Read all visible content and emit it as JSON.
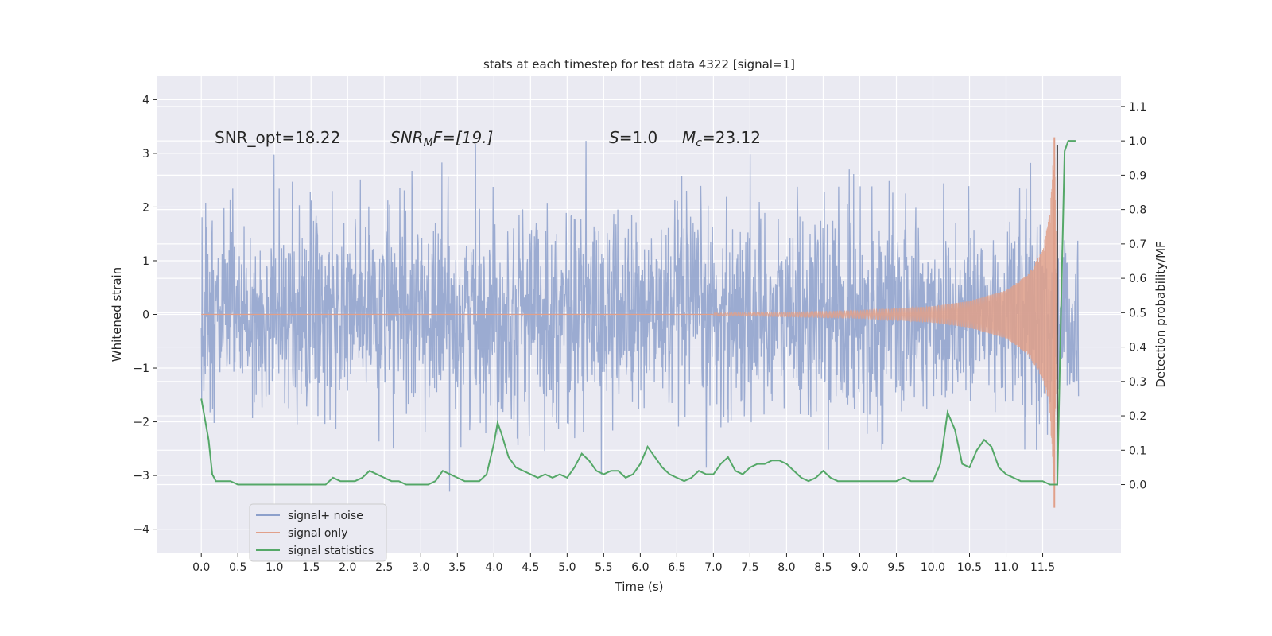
{
  "chart_data": {
    "type": "line",
    "title": "stats at each timestep for test data 4322 [signal=1]",
    "xlabel": "Time (s)",
    "ylabel_left": "Whitened strain",
    "ylabel_right": "Detection probability/MF",
    "xlim": [
      -0.6,
      12.57
    ],
    "ylim_left": [
      -4.45,
      4.45
    ],
    "ylim_right": [
      -0.2,
      1.19
    ],
    "x_ticks": [
      "0.0",
      "0.5",
      "1.0",
      "1.5",
      "2.0",
      "2.5",
      "3.0",
      "3.5",
      "4.0",
      "4.5",
      "5.0",
      "5.5",
      "6.0",
      "6.5",
      "7.0",
      "7.5",
      "8.0",
      "8.5",
      "9.0",
      "9.5",
      "10.0",
      "10.5",
      "11.0",
      "11.5"
    ],
    "y_left_ticks": [
      "4",
      "3",
      "2",
      "1",
      "0",
      "−1",
      "−2",
      "−3",
      "−4"
    ],
    "y_right_ticks": [
      "1.1",
      "1.0",
      "0.9",
      "0.8",
      "0.7",
      "0.6",
      "0.5",
      "0.4",
      "0.3",
      "0.2",
      "0.1",
      "0.0"
    ],
    "grid": true,
    "legend_position": "lower-left",
    "annotations": {
      "snr_opt": "SNR_opt=18.22",
      "snr_mf_base": "SNR",
      "snr_mf_sub": "M",
      "snr_mf_rest": "F=[19.]",
      "s_symbol": "S",
      "s_value": "=1.0",
      "mc_symbol": "M",
      "mc_sub": "c",
      "mc_value": "=23.12"
    },
    "series": [
      {
        "name": "signal+ noise",
        "color": "#8da0cb",
        "axis": "left",
        "x_range": [
          0.0,
          11.99
        ],
        "y_range": [
          -4.1,
          4.05
        ],
        "typical_envelope": [
          -1.9,
          1.9
        ]
      },
      {
        "name": "signal only",
        "color": "#e1a08a",
        "axis": "left",
        "description_points": [
          [
            0.0,
            0.0
          ],
          [
            7.5,
            0.03
          ],
          [
            9.0,
            0.07
          ],
          [
            10.0,
            0.15
          ],
          [
            10.5,
            0.25
          ],
          [
            11.0,
            0.45
          ],
          [
            11.3,
            0.75
          ],
          [
            11.5,
            1.2
          ],
          [
            11.6,
            1.9
          ],
          [
            11.66,
            3.3
          ],
          [
            11.7,
            0.0
          ]
        ]
      },
      {
        "name": "signal statistics",
        "color": "#55a868",
        "axis": "right",
        "x": [
          0.0,
          0.1,
          0.15,
          0.2,
          0.3,
          0.4,
          0.5,
          0.6,
          0.7,
          0.8,
          0.9,
          1.0,
          1.1,
          1.2,
          1.3,
          1.4,
          1.5,
          1.6,
          1.7,
          1.8,
          1.9,
          2.0,
          2.1,
          2.2,
          2.3,
          2.4,
          2.5,
          2.6,
          2.7,
          2.8,
          2.9,
          3.0,
          3.1,
          3.2,
          3.3,
          3.4,
          3.5,
          3.6,
          3.7,
          3.8,
          3.9,
          4.0,
          4.05,
          4.1,
          4.2,
          4.3,
          4.4,
          4.5,
          4.6,
          4.7,
          4.8,
          4.9,
          5.0,
          5.1,
          5.2,
          5.3,
          5.4,
          5.5,
          5.6,
          5.7,
          5.8,
          5.9,
          6.0,
          6.1,
          6.2,
          6.3,
          6.4,
          6.5,
          6.6,
          6.7,
          6.8,
          6.9,
          7.0,
          7.1,
          7.2,
          7.3,
          7.4,
          7.5,
          7.6,
          7.7,
          7.8,
          7.9,
          8.0,
          8.1,
          8.2,
          8.3,
          8.4,
          8.5,
          8.6,
          8.7,
          8.8,
          8.9,
          9.0,
          9.1,
          9.2,
          9.3,
          9.4,
          9.5,
          9.6,
          9.7,
          9.8,
          9.9,
          10.0,
          10.1,
          10.2,
          10.3,
          10.4,
          10.5,
          10.6,
          10.7,
          10.8,
          10.9,
          11.0,
          11.1,
          11.2,
          11.3,
          11.4,
          11.5,
          11.6,
          11.7,
          11.75,
          11.8,
          11.85,
          11.9,
          11.95
        ],
        "y": [
          0.25,
          0.13,
          0.03,
          0.01,
          0.01,
          0.01,
          0.0,
          0.0,
          0.0,
          0.0,
          0.0,
          0.0,
          0.0,
          0.0,
          0.0,
          0.0,
          0.0,
          0.0,
          0.0,
          0.02,
          0.01,
          0.01,
          0.01,
          0.02,
          0.04,
          0.03,
          0.02,
          0.01,
          0.01,
          0.0,
          0.0,
          0.0,
          0.0,
          0.01,
          0.04,
          0.03,
          0.02,
          0.01,
          0.01,
          0.01,
          0.03,
          0.12,
          0.18,
          0.15,
          0.08,
          0.05,
          0.04,
          0.03,
          0.02,
          0.03,
          0.02,
          0.03,
          0.02,
          0.05,
          0.09,
          0.07,
          0.04,
          0.03,
          0.04,
          0.04,
          0.02,
          0.03,
          0.06,
          0.11,
          0.08,
          0.05,
          0.03,
          0.02,
          0.01,
          0.02,
          0.04,
          0.03,
          0.03,
          0.06,
          0.08,
          0.04,
          0.03,
          0.05,
          0.06,
          0.06,
          0.07,
          0.07,
          0.06,
          0.04,
          0.02,
          0.01,
          0.02,
          0.04,
          0.02,
          0.01,
          0.01,
          0.01,
          0.01,
          0.01,
          0.01,
          0.01,
          0.01,
          0.01,
          0.02,
          0.01,
          0.01,
          0.01,
          0.01,
          0.06,
          0.21,
          0.16,
          0.06,
          0.05,
          0.1,
          0.13,
          0.11,
          0.05,
          0.03,
          0.02,
          0.01,
          0.01,
          0.01,
          0.01,
          0.0,
          0.0,
          0.5,
          0.97,
          1.0,
          1.0,
          1.0
        ]
      }
    ],
    "marker_line_x": 11.7
  },
  "legend": {
    "items": [
      {
        "label": "signal+ noise",
        "color": "#8da0cb"
      },
      {
        "label": "signal only",
        "color": "#e1a08a"
      },
      {
        "label": "signal statistics",
        "color": "#55a868"
      }
    ]
  },
  "colors": {
    "plot_background": "#eaeaf2",
    "grid": "#ffffff",
    "text": "#262626"
  }
}
